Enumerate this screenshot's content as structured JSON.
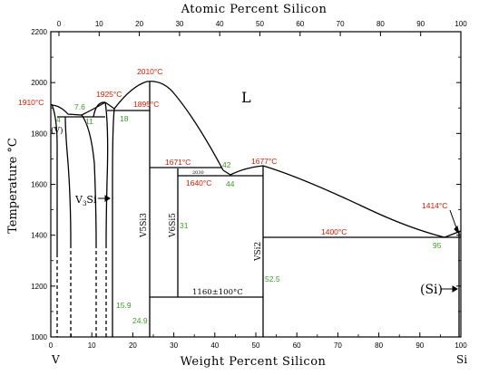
{
  "chart_data": {
    "type": "phase-diagram",
    "title": "Atomic Percent Silicon",
    "xlabel": "Weight Percent Silicon",
    "ylabel": "Temperature °C",
    "xlim": [
      0,
      100
    ],
    "ylim": [
      1000,
      2200
    ],
    "x_ticks_bottom": [
      "0",
      "10",
      "20",
      "30",
      "40",
      "50",
      "60",
      "70",
      "80",
      "90",
      "100"
    ],
    "x_ticks_top": [
      "0",
      "10",
      "20",
      "30",
      "40",
      "50",
      "60",
      "70",
      "80",
      "90",
      "100"
    ],
    "y_ticks": [
      "1000",
      "1200",
      "1400",
      "1600",
      "1800",
      "2000",
      "2200"
    ],
    "end_labels": {
      "left": "V",
      "right": "Si"
    },
    "phase_labels": {
      "liquid": "L",
      "v": "(V)",
      "si": "(Si)",
      "v3si": "V",
      "v3si_sub": "3",
      "v3si_tail": "Si",
      "v5si3": "V5Si3",
      "v6si5": "V6Si5",
      "vsi2": "VSi2",
      "reaction": "1160±100°C",
      "sm1": "2030"
    },
    "temperature_labels": [
      "1910°C",
      "1925°C",
      "1895°C",
      "2010°C",
      "1671°C",
      "1640°C",
      "1677°C",
      "1400°C",
      "1414°C"
    ],
    "composition_labels": [
      "4",
      "7.6",
      "11",
      "18",
      "42",
      "44",
      "31",
      "52.5",
      "95",
      "15.9",
      "24.9"
    ],
    "colors": {
      "temperature": "#d11a00",
      "composition": "#3a9a2a",
      "lines": "#000000"
    }
  }
}
